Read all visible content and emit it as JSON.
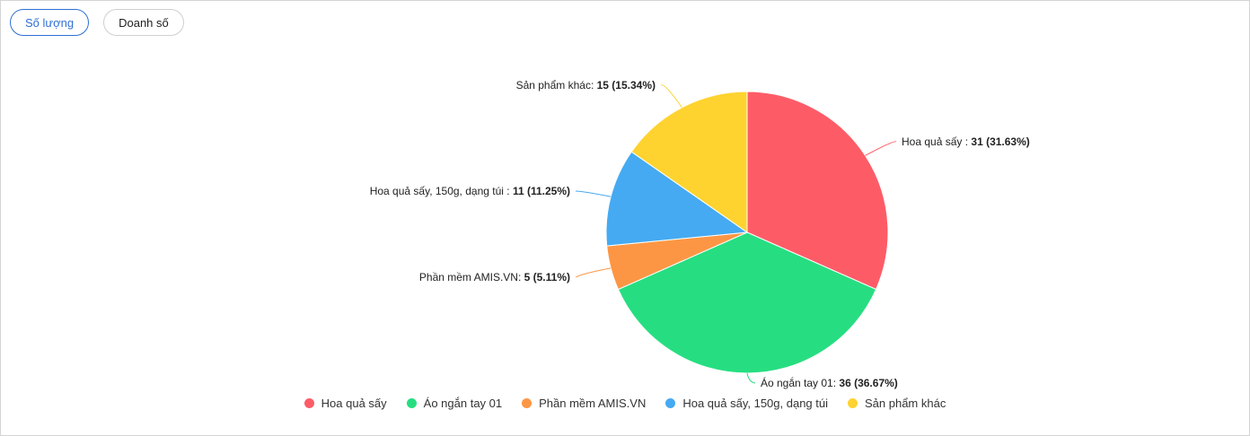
{
  "tabs": {
    "quantity_label": "Số lượng",
    "revenue_label": "Doanh số"
  },
  "chart_data": {
    "type": "pie",
    "categories": [
      "Hoa quả sấy",
      "Áo ngắn tay 01",
      "Phần mềm AMIS.VN",
      "Hoa quả sấy, 150g, dạng túi",
      "Sản phẩm khác"
    ],
    "values": [
      31,
      36,
      5,
      11,
      15
    ],
    "percentages": [
      "31.63%",
      "36.67%",
      "5.11%",
      "11.25%",
      "15.34%"
    ],
    "data_labels": [
      {
        "name": "Hoa quả sấy :",
        "value": "31 (31.63%)"
      },
      {
        "name": "Áo ngắn tay 01:",
        "value": "36 (36.67%)"
      },
      {
        "name": "Phần mềm AMIS.VN:",
        "value": "5 (5.11%)"
      },
      {
        "name": "Hoa quả sấy, 150g, dạng túi :",
        "value": "11 (11.25%)"
      },
      {
        "name": "Sản phẩm khác:",
        "value": "15 (15.34%)"
      }
    ],
    "colors": [
      "#fd5c67",
      "#26de81",
      "#fd9644",
      "#45aaf2",
      "#fed330"
    ],
    "legend_position": "bottom"
  }
}
